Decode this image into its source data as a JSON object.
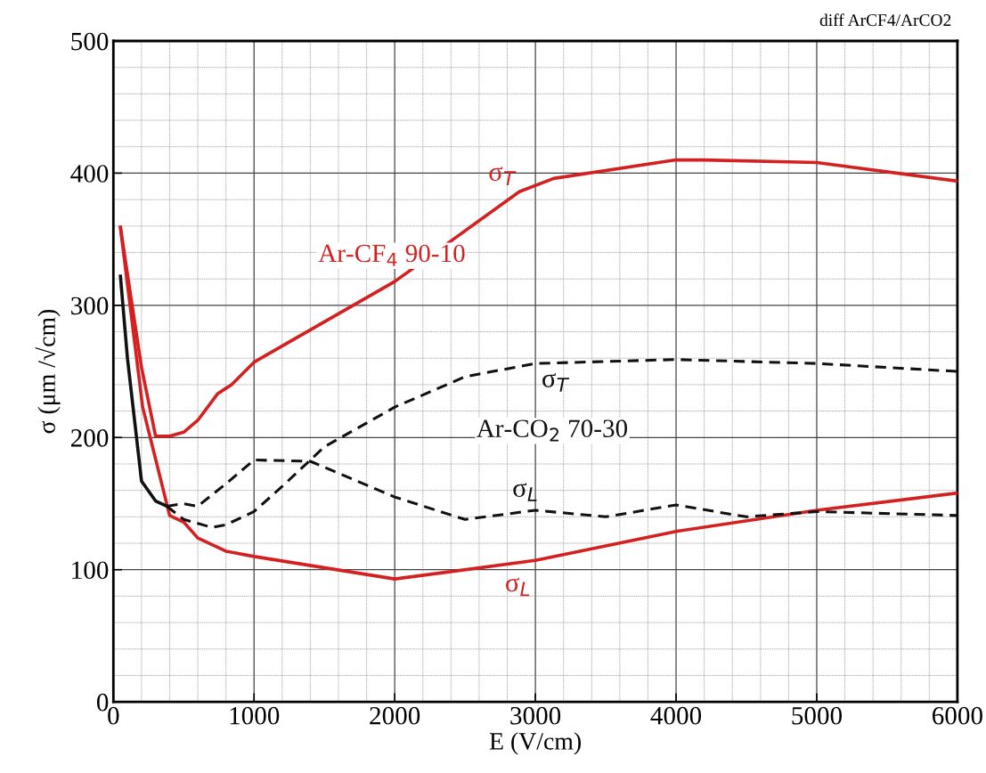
{
  "chart_data": {
    "type": "line",
    "xlabel": "E (V/cm)",
    "ylabel": "σ (μm /√cm)",
    "xlim": [
      0,
      6000
    ],
    "ylim": [
      0,
      500
    ],
    "xticks": [
      0,
      1000,
      2000,
      3000,
      4000,
      5000,
      6000
    ],
    "yticks": [
      0,
      100,
      200,
      300,
      400,
      500
    ],
    "grid": true,
    "marker": "none",
    "series": [
      {
        "name": "σ$_{T}$",
        "color": "#d42020",
        "line_style": "solid",
        "x": [
          50,
          200,
          300,
          400,
          500,
          600,
          740,
          840,
          1000,
          2000,
          2886,
          3130,
          4000,
          4200,
          5000,
          6000
        ],
        "values": [
          359,
          253,
          201,
          201,
          204,
          213,
          233,
          240,
          257,
          318,
          386,
          396,
          410,
          410,
          408,
          394
        ]
      },
      {
        "name": "σ$_{L}$",
        "color": "#d42020",
        "line_style": "solid",
        "x": [
          50,
          208,
          400,
          500,
          600,
          800,
          1000,
          2000,
          3000,
          4000,
          5000,
          6000
        ],
        "values": [
          359,
          223,
          141,
          136,
          124,
          114,
          110,
          93,
          107,
          129,
          145,
          158
        ]
      },
      {
        "color": "#111111",
        "line_style": "solid",
        "x": [
          50,
          100,
          200,
          300,
          380
        ],
        "values": [
          322,
          260,
          167,
          152,
          148
        ]
      },
      {
        "name": "σ$_{T}$",
        "color": "#111111",
        "line_style": "dashed",
        "x": [
          380,
          500,
          700,
          800,
          1000,
          1200,
          1500,
          2000,
          2500,
          3000,
          4000,
          5000,
          6000
        ],
        "values": [
          148,
          138,
          132,
          134,
          144,
          163,
          193,
          223,
          246,
          256,
          259,
          256,
          250
        ]
      },
      {
        "name": "σ$_{L}$",
        "color": "#111111",
        "line_style": "dashed",
        "x": [
          380,
          500,
          600,
          800,
          1000,
          1400,
          2000,
          2500,
          3000,
          3500,
          4000,
          4500,
          5000,
          6000
        ],
        "values": [
          148,
          150,
          148,
          165,
          183,
          182,
          155,
          138,
          145,
          140,
          149,
          140,
          144,
          141
        ]
      }
    ],
    "annotations": [
      "Ar-CF$_{4}$ 90-10",
      "Ar-CO$_{2}$ 70-30",
      "diff ArCF4/ArCO2"
    ]
  }
}
